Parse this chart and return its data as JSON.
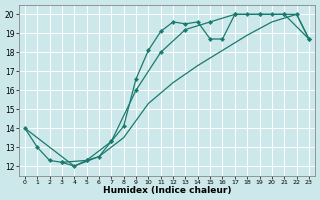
{
  "bg_color": "#cce8ea",
  "line_color": "#1a7a6e",
  "grid_color": "#ffffff",
  "xlabel": "Humidex (Indice chaleur)",
  "xlim": [
    -0.5,
    23.5
  ],
  "ylim": [
    11.5,
    20.5
  ],
  "xticks": [
    0,
    1,
    2,
    3,
    4,
    5,
    6,
    7,
    8,
    9,
    10,
    11,
    12,
    13,
    14,
    15,
    16,
    17,
    18,
    19,
    20,
    21,
    22,
    23
  ],
  "yticks": [
    12,
    13,
    14,
    15,
    16,
    17,
    18,
    19,
    20
  ],
  "trace_marked_x": [
    0,
    1,
    2,
    3,
    4,
    5,
    6,
    7,
    8,
    9,
    10,
    11,
    12,
    13,
    14,
    15,
    16,
    17,
    18,
    19,
    20,
    21,
    22,
    23
  ],
  "trace_marked_y": [
    14,
    13,
    12.3,
    12.2,
    12.0,
    12.3,
    12.5,
    13.3,
    14.1,
    16.6,
    18.1,
    19.1,
    19.6,
    19.5,
    19.6,
    18.7,
    18.7,
    20.0,
    20.0,
    20.0,
    20.0,
    20.0,
    20.0,
    18.7
  ],
  "trace_diag_x": [
    0,
    4,
    6,
    8,
    10,
    12,
    14,
    16,
    18,
    20,
    22,
    23
  ],
  "trace_diag_y": [
    14,
    12.0,
    12.5,
    13.5,
    15.3,
    16.4,
    17.3,
    18.1,
    18.9,
    19.6,
    20.0,
    18.7
  ],
  "trace_upper_x": [
    3,
    5,
    7,
    9,
    11,
    13,
    15,
    17,
    19,
    21,
    23
  ],
  "trace_upper_y": [
    12.2,
    12.3,
    13.3,
    16.0,
    18.0,
    19.2,
    19.6,
    20.0,
    20.0,
    20.0,
    18.7
  ]
}
